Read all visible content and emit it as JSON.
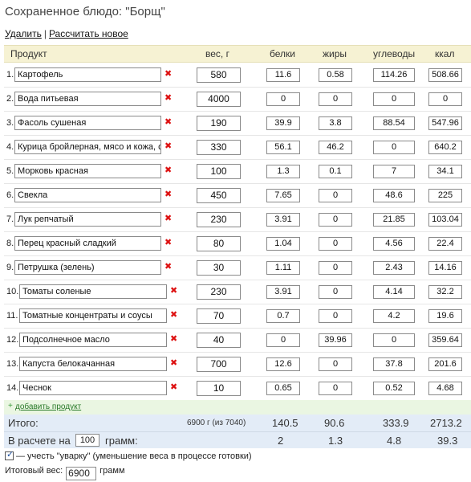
{
  "title": "Сохраненное блюдо: \"Борщ\"",
  "links": {
    "delete": "Удалить",
    "separator": "|",
    "new_calc": "Рассчитать новое"
  },
  "header": {
    "product": "Продукт",
    "weight": "вес, г",
    "proteins": "белки",
    "fats": "жиры",
    "carbs": "углеводы",
    "kcal": "ккал"
  },
  "rows": [
    {
      "idx": "1.",
      "name": "Картофель",
      "weight": "580",
      "b": "11.6",
      "f": "0.58",
      "c": "114.26",
      "k": "508.66"
    },
    {
      "idx": "2.",
      "name": "Вода питьевая",
      "weight": "4000",
      "b": "0",
      "f": "0",
      "c": "0",
      "k": "0"
    },
    {
      "idx": "3.",
      "name": "Фасоль сушеная",
      "weight": "190",
      "b": "39.9",
      "f": "3.8",
      "c": "88.54",
      "k": "547.96"
    },
    {
      "idx": "4.",
      "name": "Курица бройлерная, мясо и кожа, с",
      "weight": "330",
      "b": "56.1",
      "f": "46.2",
      "c": "0",
      "k": "640.2"
    },
    {
      "idx": "5.",
      "name": "Морковь красная",
      "weight": "100",
      "b": "1.3",
      "f": "0.1",
      "c": "7",
      "k": "34.1"
    },
    {
      "idx": "6.",
      "name": "Свекла",
      "weight": "450",
      "b": "7.65",
      "f": "0",
      "c": "48.6",
      "k": "225"
    },
    {
      "idx": "7.",
      "name": "Лук репчатый",
      "weight": "230",
      "b": "3.91",
      "f": "0",
      "c": "21.85",
      "k": "103.04"
    },
    {
      "idx": "8.",
      "name": "Перец красный сладкий",
      "weight": "80",
      "b": "1.04",
      "f": "0",
      "c": "4.56",
      "k": "22.4"
    },
    {
      "idx": "9.",
      "name": "Петрушка (зелень)",
      "weight": "30",
      "b": "1.11",
      "f": "0",
      "c": "2.43",
      "k": "14.16"
    },
    {
      "idx": "10.",
      "name": "Томаты соленые",
      "weight": "230",
      "b": "3.91",
      "f": "0",
      "c": "4.14",
      "k": "32.2"
    },
    {
      "idx": "11.",
      "name": "Томатные концентраты и соусы",
      "weight": "70",
      "b": "0.7",
      "f": "0",
      "c": "4.2",
      "k": "19.6"
    },
    {
      "idx": "12.",
      "name": "Подсолнечное масло",
      "weight": "40",
      "b": "0",
      "f": "39.96",
      "c": "0",
      "k": "359.64"
    },
    {
      "idx": "13.",
      "name": "Капуста белокачанная",
      "weight": "700",
      "b": "12.6",
      "f": "0",
      "c": "37.8",
      "k": "201.6"
    },
    {
      "idx": "14.",
      "name": "Чеснок",
      "weight": "10",
      "b": "0.65",
      "f": "0",
      "c": "0.52",
      "k": "4.68"
    }
  ],
  "delete_glyph": "✖",
  "add_product": {
    "plus": "+",
    "label": "добавить продукт"
  },
  "total": {
    "label": "Итого:",
    "weight": "6900 г (из 7040)",
    "b": "140.5",
    "f": "90.6",
    "c": "333.9",
    "k": "2713.2"
  },
  "per": {
    "label_before": "В расчете на",
    "amount": "100",
    "label_after": "грамм:",
    "b": "2",
    "f": "1.3",
    "c": "4.8",
    "k": "39.3"
  },
  "boil_checkbox": {
    "checked": true,
    "label": "— учесть \"уварку\" (уменьшение веса в процессе готовки)"
  },
  "final_weight": {
    "label": "Итоговый вес:",
    "value": "6900",
    "unit": "грамм"
  },
  "colors": {
    "header_bg": "#f6f2d3",
    "total_bg": "#e3ecf7",
    "add_bg": "#eaf6e2",
    "delete": "#dd1111"
  }
}
